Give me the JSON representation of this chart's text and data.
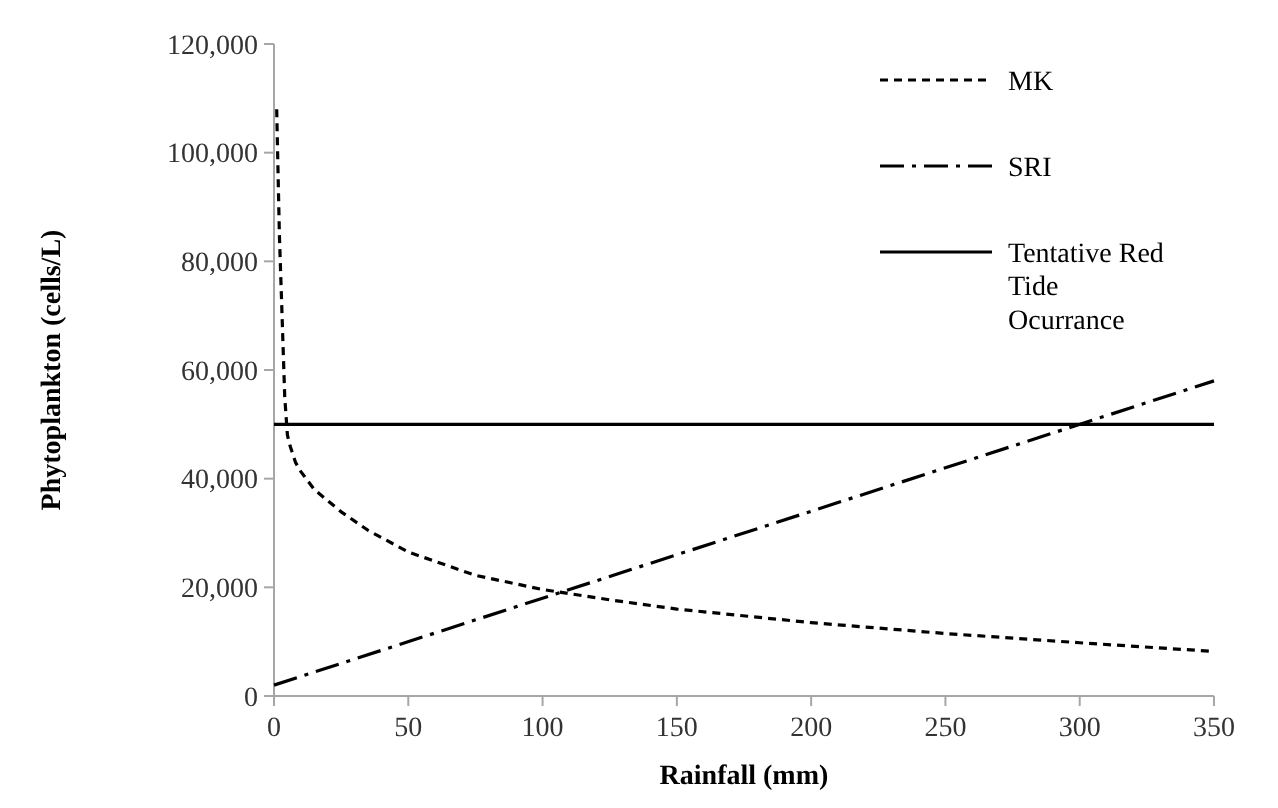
{
  "chart_data": {
    "type": "line",
    "xlabel": "Rainfall (mm)",
    "ylabel": "Phytoplankton (cells/L)",
    "xlim": [
      0,
      350
    ],
    "xticks": [
      0,
      50,
      100,
      150,
      200,
      250,
      300,
      350
    ],
    "ylim": [
      0,
      120000
    ],
    "yticks": [
      {
        "value": 0,
        "label": "0"
      },
      {
        "value": 20000,
        "label": "20,000"
      },
      {
        "value": 40000,
        "label": "40,000"
      },
      {
        "value": 60000,
        "label": "60,000"
      },
      {
        "value": 80000,
        "label": "80,000"
      },
      {
        "value": 100000,
        "label": "100,000"
      },
      {
        "value": 120000,
        "label": "120,000"
      }
    ],
    "grid": false,
    "legend": "top right",
    "series": [
      {
        "name": "MK",
        "color": "#000000",
        "line_style": "dashed",
        "x": [
          1,
          2,
          3,
          4,
          5,
          6,
          8,
          10,
          15,
          25,
          35,
          50,
          75,
          100,
          125,
          150,
          200,
          250,
          300,
          350
        ],
        "values": [
          108000,
          85000,
          70000,
          55000,
          48000,
          46000,
          43000,
          41300,
          38000,
          33900,
          30500,
          26500,
          22200,
          19600,
          17700,
          16000,
          13500,
          11500,
          9800,
          8200
        ]
      },
      {
        "name": "SRI",
        "color": "#000000",
        "line_style": "dashdot",
        "x": [
          0,
          350
        ],
        "values": [
          2000,
          58000
        ]
      },
      {
        "name": "Tentative Red Tide Ocurrance",
        "color": "#000000",
        "line_style": "solid",
        "x": [
          0,
          350
        ],
        "values": [
          50000,
          50000
        ]
      }
    ]
  }
}
